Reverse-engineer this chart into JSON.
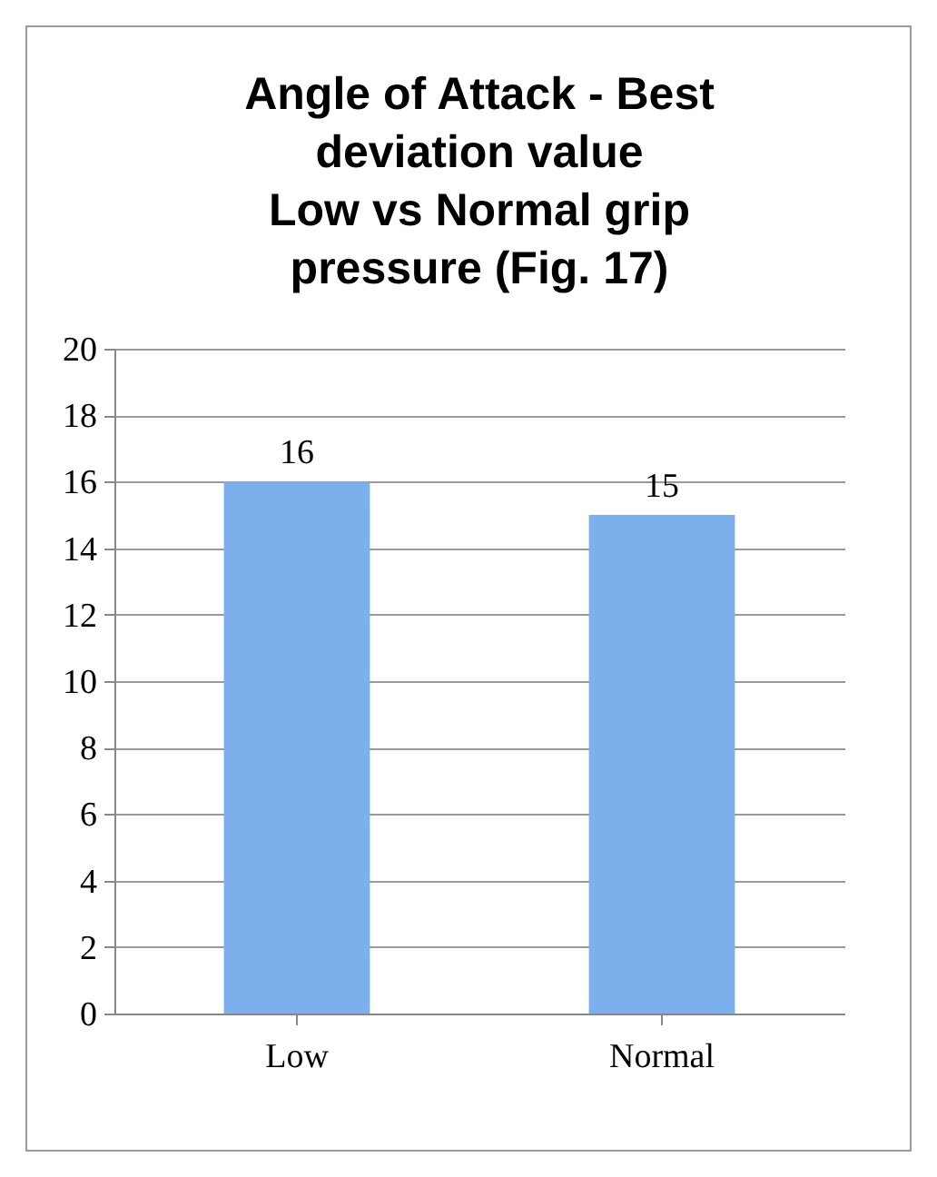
{
  "chart_data": {
    "type": "bar",
    "title": "Angle of Attack - Best\ndeviation value\nLow vs Normal grip\npressure (Fig. 17)",
    "categories": [
      "Low",
      "Normal"
    ],
    "values": [
      16,
      15
    ],
    "color": "#7cb0ec",
    "ylim": [
      0,
      20
    ],
    "yticks": [
      0,
      2,
      4,
      6,
      8,
      10,
      12,
      14,
      16,
      18,
      20
    ],
    "grid": "y",
    "data_labels": true
  }
}
